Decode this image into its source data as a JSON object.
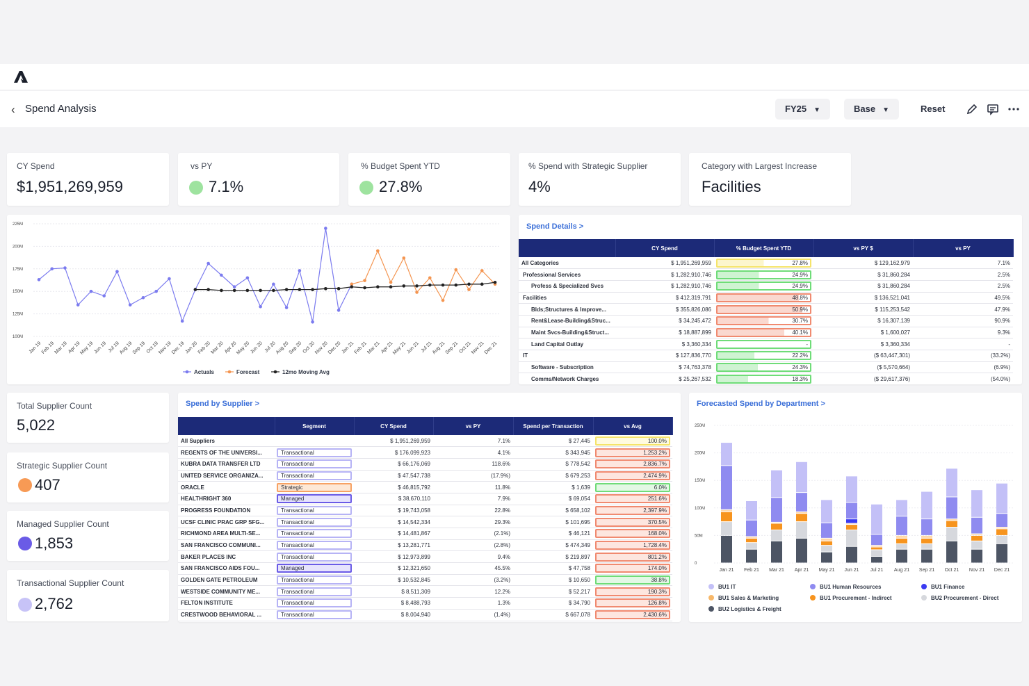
{
  "app": {
    "page_title": "Spend Analysis"
  },
  "toolbar": {
    "fy": "FY25",
    "scenario": "Base",
    "reset": "Reset"
  },
  "kpis": [
    {
      "label": "CY Spend",
      "value": "$1,951,269,959"
    },
    {
      "label": "vs PY",
      "value": "7.1%",
      "dot": "#9ee39f"
    },
    {
      "label": "% Budget Spent YTD",
      "value": "27.8%",
      "dot": "#9ee39f"
    },
    {
      "label": "% Spend with Strategic Supplier",
      "value": "4%"
    },
    {
      "label": "Category with Largest Increase",
      "value": "Facilities"
    }
  ],
  "supplier_kpis": [
    {
      "label": "Total Supplier Count",
      "value": "5,022"
    },
    {
      "label": "Strategic Supplier Count",
      "value": "407",
      "dot": "#f79a55"
    },
    {
      "label": "Managed Supplier Count",
      "value": "1,853",
      "dot": "#6a5be6"
    },
    {
      "label": "Transactional Supplier Count",
      "value": "2,762",
      "dot": "#c7c3f7"
    }
  ],
  "spend_details": {
    "link": "Spend Details >",
    "columns": [
      "",
      "CY Spend",
      "% Budget Spent YTD",
      "vs PY $",
      "vs PY"
    ],
    "rows": [
      {
        "name": "All Categories",
        "level": 0,
        "cy": "$ 1,951,269,959",
        "budget": "27.8%",
        "budget_pct": 0.278,
        "color": "#f5e46a",
        "vspy": "$ 129,162,979",
        "vspy_pct": "7.1%"
      },
      {
        "name": "Professional Services",
        "level": 1,
        "cy": "$ 1,282,910,746",
        "budget": "24.9%",
        "budget_pct": 0.249,
        "color": "#6fdc78",
        "vspy": "$ 31,860,284",
        "vspy_pct": "2.5%"
      },
      {
        "name": "Profess & Specialized Svcs",
        "level": 2,
        "cy": "$ 1,282,910,746",
        "budget": "24.9%",
        "budget_pct": 0.249,
        "color": "#6fdc78",
        "vspy": "$ 31,860,284",
        "vspy_pct": "2.5%"
      },
      {
        "name": "Facilities",
        "level": 1,
        "cy": "$ 412,319,791",
        "budget": "48.8%",
        "budget_pct": 0.488,
        "color": "#f08a70",
        "vspy": "$ 136,521,041",
        "vspy_pct": "49.5%"
      },
      {
        "name": "Blds;Structures & Improve...",
        "level": 2,
        "cy": "$ 355,826,086",
        "budget": "50.9%",
        "budget_pct": 0.509,
        "color": "#f08a70",
        "vspy": "$ 115,253,542",
        "vspy_pct": "47.9%"
      },
      {
        "name": "Rent&Lease-Building&Struc...",
        "level": 2,
        "cy": "$ 34,245,472",
        "budget": "30.7%",
        "budget_pct": 0.307,
        "color": "#f08a70",
        "vspy": "$ 16,307,139",
        "vspy_pct": "90.9%"
      },
      {
        "name": "Maint Svcs-Building&Struct...",
        "level": 2,
        "cy": "$ 18,887,899",
        "budget": "40.1%",
        "budget_pct": 0.401,
        "color": "#f08a70",
        "vspy": "$ 1,600,027",
        "vspy_pct": "9.3%"
      },
      {
        "name": "Land Capital Outlay",
        "level": 2,
        "cy": "$ 3,360,334",
        "budget": "-",
        "budget_pct": 0,
        "color": "#6fdc78",
        "vspy": "$ 3,360,334",
        "vspy_pct": "-"
      },
      {
        "name": "IT",
        "level": 1,
        "cy": "$ 127,836,770",
        "budget": "22.2%",
        "budget_pct": 0.222,
        "color": "#6fdc78",
        "vspy": "($ 63,447,301)",
        "vspy_pct": "(33.2%)"
      },
      {
        "name": "Software - Subscription",
        "level": 2,
        "cy": "$ 74,763,378",
        "budget": "24.3%",
        "budget_pct": 0.243,
        "color": "#6fdc78",
        "vspy": "($ 5,570,664)",
        "vspy_pct": "(6.9%)"
      },
      {
        "name": "Comms/Network Charges",
        "level": 2,
        "cy": "$ 25,267,532",
        "budget": "18.3%",
        "budget_pct": 0.183,
        "color": "#6fdc78",
        "vspy": "($ 29,617,376)",
        "vspy_pct": "(54.0%)"
      }
    ]
  },
  "spend_by_supplier": {
    "link": "Spend by Supplier >",
    "columns": [
      "",
      "Segment",
      "CY Spend",
      "vs PY",
      "Spend per Transaction",
      "vs Avg"
    ],
    "rows": [
      {
        "name": "All Suppliers",
        "segment": "",
        "cy": "$ 1,951,269,959",
        "vspy": "7.1%",
        "spt": "$ 27,445",
        "avg": "100.0%",
        "avg_color": "#f5e46a"
      },
      {
        "name": "REGENTS OF THE UNIVERSI...",
        "segment": "Transactional",
        "cy": "$ 176,099,923",
        "vspy": "4.1%",
        "spt": "$ 343,945",
        "avg": "1,253.2%",
        "avg_color": "#f08a70"
      },
      {
        "name": "KUBRA DATA TRANSFER LTD",
        "segment": "Transactional",
        "cy": "$ 66,176,069",
        "vspy": "118.6%",
        "spt": "$ 778,542",
        "avg": "2,836.7%",
        "avg_color": "#f08a70"
      },
      {
        "name": "UNITED SERVICE ORGANIZA...",
        "segment": "Transactional",
        "cy": "$ 47,547,738",
        "vspy": "(17.9%)",
        "spt": "$ 679,253",
        "avg": "2,474.9%",
        "avg_color": "#f08a70"
      },
      {
        "name": "ORACLE",
        "segment": "Strategic",
        "cy": "$ 46,815,792",
        "vspy": "11.8%",
        "spt": "$ 1,639",
        "avg": "6.0%",
        "avg_color": "#6fdc78"
      },
      {
        "name": "HEALTHRIGHT 360",
        "segment": "Managed",
        "cy": "$ 38,670,110",
        "vspy": "7.9%",
        "spt": "$ 69,054",
        "avg": "251.6%",
        "avg_color": "#f08a70"
      },
      {
        "name": "PROGRESS FOUNDATION",
        "segment": "Transactional",
        "cy": "$ 19,743,058",
        "vspy": "22.8%",
        "spt": "$ 658,102",
        "avg": "2,397.9%",
        "avg_color": "#f08a70"
      },
      {
        "name": "UCSF CLINIC PRAC GRP SFG...",
        "segment": "Transactional",
        "cy": "$ 14,542,334",
        "vspy": "29.3%",
        "spt": "$ 101,695",
        "avg": "370.5%",
        "avg_color": "#f08a70"
      },
      {
        "name": "RICHMOND AREA MULTI-SE...",
        "segment": "Transactional",
        "cy": "$ 14,481,867",
        "vspy": "(2.1%)",
        "spt": "$ 46,121",
        "avg": "168.0%",
        "avg_color": "#f08a70"
      },
      {
        "name": "SAN FRANCISCO COMMUNI...",
        "segment": "Transactional",
        "cy": "$ 13,281,771",
        "vspy": "(2.8%)",
        "spt": "$ 474,349",
        "avg": "1,728.4%",
        "avg_color": "#f08a70"
      },
      {
        "name": "BAKER PLACES INC",
        "segment": "Transactional",
        "cy": "$ 12,973,899",
        "vspy": "9.4%",
        "spt": "$ 219,897",
        "avg": "801.2%",
        "avg_color": "#f08a70"
      },
      {
        "name": "SAN FRANCISCO AIDS FOU...",
        "segment": "Managed",
        "cy": "$ 12,321,650",
        "vspy": "45.5%",
        "spt": "$ 47,758",
        "avg": "174.0%",
        "avg_color": "#f08a70"
      },
      {
        "name": "GOLDEN GATE PETROLEUM",
        "segment": "Transactional",
        "cy": "$ 10,532,845",
        "vspy": "(3.2%)",
        "spt": "$ 10,650",
        "avg": "38.8%",
        "avg_color": "#6fdc78"
      },
      {
        "name": "WESTSIDE COMMUNITY ME...",
        "segment": "Transactional",
        "cy": "$ 8,511,309",
        "vspy": "12.2%",
        "spt": "$ 52,217",
        "avg": "190.3%",
        "avg_color": "#f08a70"
      },
      {
        "name": "FELTON INSTITUTE",
        "segment": "Transactional",
        "cy": "$ 8,488,793",
        "vspy": "1.3%",
        "spt": "$ 34,790",
        "avg": "126.8%",
        "avg_color": "#f08a70"
      },
      {
        "name": "CRESTWOOD BEHAVIORAL ...",
        "segment": "Transactional",
        "cy": "$ 8,004,940",
        "vspy": "(1.4%)",
        "spt": "$ 667,078",
        "avg": "2,430.6%",
        "avg_color": "#f08a70"
      }
    ]
  },
  "dept_link": "Forecasted Spend by Department >",
  "chart_data": [
    {
      "type": "line",
      "title": "",
      "ylim": [
        100,
        225
      ],
      "y_ticks": [
        "225M",
        "200M",
        "175M",
        "150M",
        "125M",
        "100M"
      ],
      "x": [
        "Jan 19",
        "Feb 19",
        "Mar 19",
        "Apr 19",
        "May 19",
        "Jun 19",
        "Jul 19",
        "Aug 19",
        "Sep 19",
        "Oct 19",
        "Nov 19",
        "Dec 19",
        "Jan 20",
        "Feb 20",
        "Mar 20",
        "Apr 20",
        "May 20",
        "Jun 20",
        "Jul 20",
        "Aug 20",
        "Sep 20",
        "Oct 20",
        "Nov 20",
        "Dec 20",
        "Jan 21",
        "Feb 21",
        "Mar 21",
        "Apr 21",
        "May 21",
        "Jun 21",
        "Jul 21",
        "Aug 21",
        "Sep 21",
        "Oct 21",
        "Nov 21",
        "Dec 21"
      ],
      "series": [
        {
          "name": "Actuals",
          "color": "#7b7bef",
          "values": [
            163,
            175,
            176,
            135,
            150,
            145,
            172,
            135,
            143,
            150,
            164,
            117,
            152,
            181,
            168,
            155,
            165,
            133,
            158,
            132,
            173,
            116,
            220,
            129,
            158,
            null,
            null,
            null,
            null,
            null,
            null,
            null,
            null,
            null,
            null,
            null
          ]
        },
        {
          "name": "Forecast",
          "color": "#f49550",
          "values": [
            null,
            null,
            null,
            null,
            null,
            null,
            null,
            null,
            null,
            null,
            null,
            null,
            null,
            null,
            null,
            null,
            null,
            null,
            null,
            null,
            null,
            null,
            null,
            null,
            158,
            162,
            195,
            160,
            187,
            149,
            165,
            140,
            174,
            152,
            173,
            158
          ]
        },
        {
          "name": "12mo Moving Avg",
          "color": "#222222",
          "values": [
            null,
            null,
            null,
            null,
            null,
            null,
            null,
            null,
            null,
            null,
            null,
            null,
            152,
            152,
            151,
            151,
            151,
            151,
            151,
            152,
            152,
            152,
            153,
            153,
            155,
            154,
            155,
            155,
            156,
            156,
            157,
            157,
            157,
            158,
            158,
            160
          ]
        }
      ]
    },
    {
      "type": "bar",
      "stacked": true,
      "ylim": [
        0,
        250
      ],
      "y_ticks": [
        "250M",
        "200M",
        "150M",
        "100M",
        "50M",
        "0"
      ],
      "categories": [
        "Jan 21",
        "Feb 21",
        "Mar 21",
        "Apr 21",
        "May 21",
        "Jun 21",
        "Jul 21",
        "Aug 21",
        "Sep 21",
        "Oct 21",
        "Nov 21",
        "Dec 21"
      ],
      "series": [
        {
          "name": "BU2 Logistics & Freight",
          "color": "#4d5564",
          "values": [
            50,
            25,
            40,
            45,
            20,
            30,
            12,
            25,
            25,
            40,
            25,
            35
          ]
        },
        {
          "name": "BU2 Procurement - Direct",
          "color": "#d6d8dd",
          "values": [
            25,
            12,
            20,
            30,
            12,
            30,
            12,
            10,
            10,
            25,
            15,
            15
          ]
        },
        {
          "name": "BU1 Procurement - Indirect",
          "color": "#f7941e",
          "values": [
            18,
            8,
            12,
            15,
            8,
            10,
            5,
            10,
            10,
            12,
            10,
            12
          ]
        },
        {
          "name": "BU1 Sales & Marketing",
          "color": "#ffd8a8",
          "values": [
            4,
            3,
            2,
            3,
            5,
            2,
            3,
            5,
            5,
            3,
            3,
            3
          ]
        },
        {
          "name": "BU1 Finance",
          "color": "#3b3bf2",
          "values": [
            0,
            0,
            0,
            0,
            0,
            8,
            0,
            0,
            0,
            0,
            0,
            0
          ]
        },
        {
          "name": "BU1 IT",
          "color": "#8f8bf0",
          "values": [
            80,
            30,
            45,
            35,
            28,
            30,
            20,
            35,
            30,
            40,
            30,
            25
          ]
        },
        {
          "name": "BU1 Human Resources",
          "color": "#c3c0f7",
          "values": [
            42,
            35,
            50,
            56,
            42,
            48,
            55,
            30,
            50,
            52,
            50,
            55
          ]
        }
      ]
    }
  ],
  "dept_legend": [
    {
      "name": "BU1 IT",
      "color": "#c3c0f7"
    },
    {
      "name": "BU1 Human Resources",
      "color": "#8f8bf0"
    },
    {
      "name": "BU1 Finance",
      "color": "#3b3bf2"
    },
    {
      "name": "BU1 Sales & Marketing",
      "color": "#f7b86a"
    },
    {
      "name": "BU1 Procurement - Indirect",
      "color": "#f7941e"
    },
    {
      "name": "BU2 Procurement - Direct",
      "color": "#d6d8dd"
    },
    {
      "name": "BU2 Logistics & Freight",
      "color": "#4d5564"
    }
  ]
}
